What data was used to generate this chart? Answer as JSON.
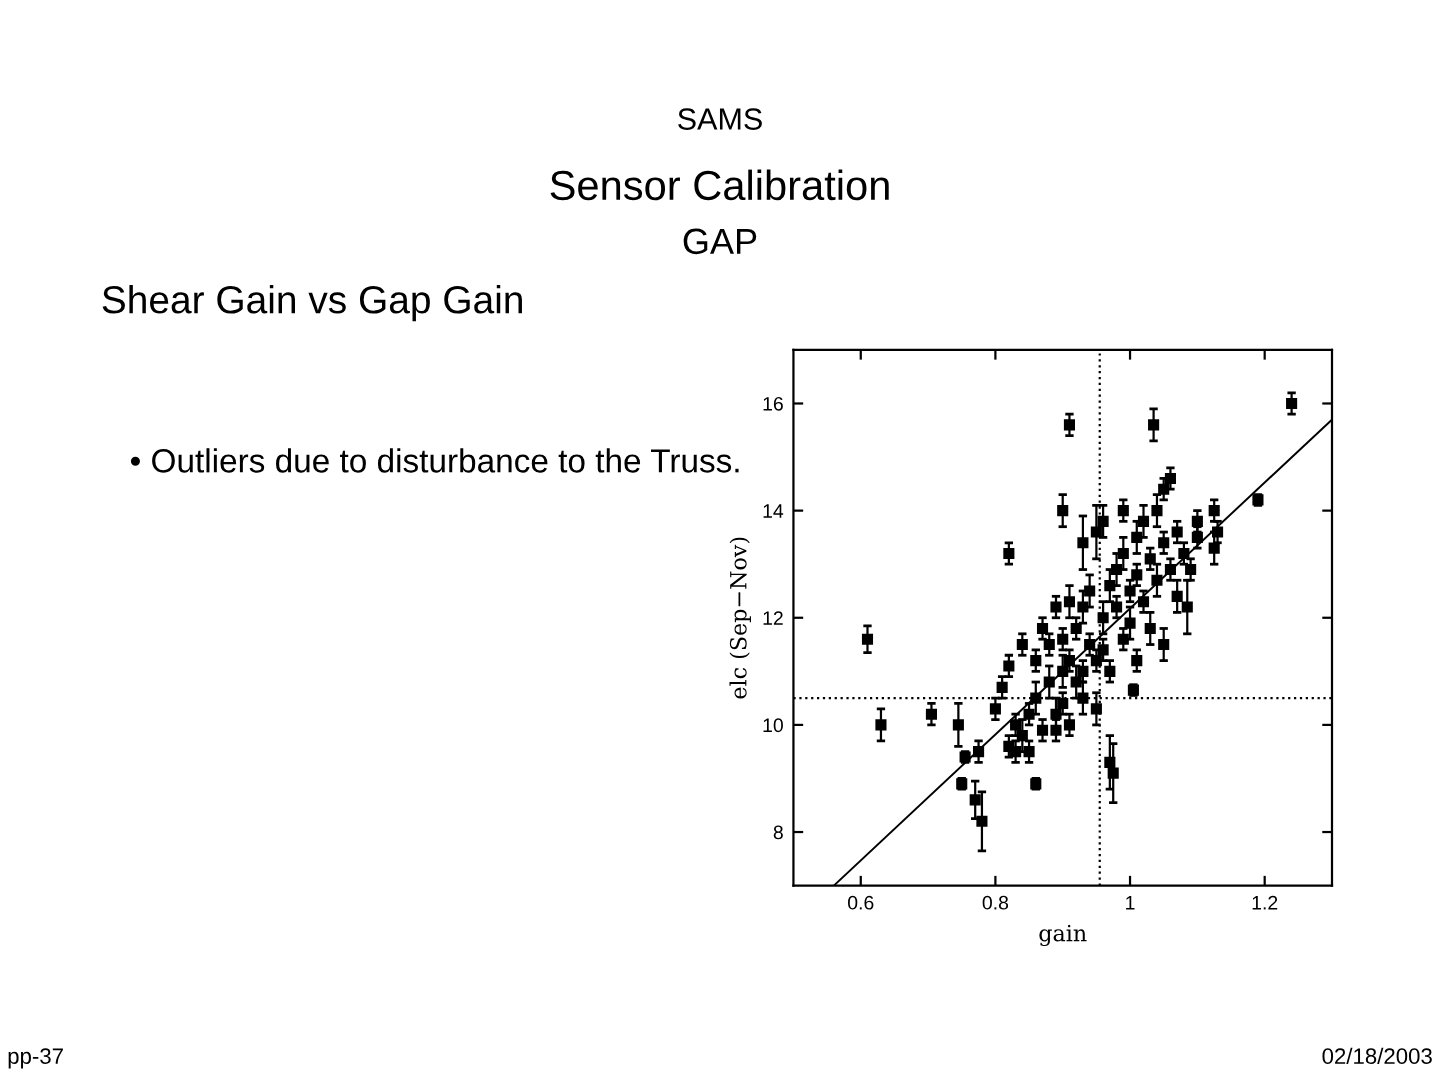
{
  "chart_data": {
    "type": "scatter",
    "title": "Sensor Calibration",
    "subtitle": "GAP",
    "xlabel": "gain",
    "ylabel": "elc (Sep−Nov)",
    "annotations": [
      "SAMS",
      "Shear Gain vs Gap Gain",
      "• Outliers due to disturbance to the Truss.",
      "pp-37",
      "02/18/2003"
    ],
    "xlim": [
      0.5,
      1.3
    ],
    "ylim": [
      7,
      17
    ],
    "xticks": [
      0.6,
      0.8,
      1,
      1.2
    ],
    "yticks": [
      8,
      10,
      12,
      14,
      16
    ],
    "grid": false,
    "legend": false,
    "ref_lines": [
      {
        "axis": "x",
        "value": 0.955,
        "line_style": "dotted",
        "color": "#000000"
      },
      {
        "axis": "y",
        "value": 10.5,
        "line_style": "dotted",
        "color": "#000000"
      }
    ],
    "series": [
      {
        "marker": "square",
        "color": "#000000",
        "x": [
          0.61,
          0.63,
          0.705,
          0.745,
          0.755,
          0.75,
          0.77,
          0.78,
          0.775,
          0.82,
          0.86,
          0.91,
          0.9,
          1.035,
          1.24,
          1.19,
          0.97,
          0.975,
          1.005,
          1.13,
          1.125,
          1.125,
          1.085,
          1.06,
          1.05,
          0.99,
          0.95,
          0.93,
          0.96,
          0.8,
          0.81,
          0.82,
          0.82,
          0.83,
          0.83,
          0.84,
          0.84,
          0.85,
          0.85,
          0.86,
          0.86,
          0.87,
          0.87,
          0.88,
          0.88,
          0.89,
          0.89,
          0.89,
          0.9,
          0.9,
          0.9,
          0.91,
          0.91,
          0.91,
          0.92,
          0.92,
          0.93,
          0.93,
          0.93,
          0.94,
          0.94,
          0.95,
          0.95,
          0.96,
          0.96,
          0.97,
          0.97,
          0.98,
          0.98,
          0.99,
          0.99,
          1.0,
          1.0,
          1.01,
          1.01,
          1.01,
          1.02,
          1.02,
          1.03,
          1.03,
          1.04,
          1.04,
          1.05,
          1.05,
          1.06,
          1.07,
          1.07,
          1.08,
          1.09,
          1.1,
          1.1
        ],
        "values": [
          11.6,
          10.0,
          10.2,
          10.0,
          9.4,
          8.9,
          8.6,
          8.2,
          9.5,
          13.2,
          8.9,
          15.6,
          14.0,
          15.6,
          16.0,
          14.2,
          9.3,
          9.1,
          10.65,
          13.6,
          13.3,
          14.0,
          12.2,
          14.6,
          14.4,
          14.0,
          13.6,
          13.4,
          13.8,
          10.3,
          10.7,
          11.1,
          9.6,
          9.5,
          10.0,
          11.5,
          9.8,
          10.2,
          9.5,
          11.2,
          10.5,
          11.8,
          9.9,
          10.8,
          11.5,
          12.2,
          10.2,
          9.9,
          11.0,
          11.6,
          10.4,
          12.3,
          11.2,
          10.0,
          10.8,
          11.8,
          12.2,
          11.0,
          10.5,
          11.5,
          12.5,
          11.2,
          10.3,
          12.0,
          11.4,
          12.6,
          11.0,
          12.9,
          12.2,
          11.6,
          13.2,
          12.5,
          11.9,
          13.5,
          12.8,
          11.2,
          13.8,
          12.3,
          13.1,
          11.8,
          12.7,
          14.0,
          13.4,
          11.5,
          12.9,
          13.6,
          12.4,
          13.2,
          12.9,
          13.5,
          13.8
        ],
        "errors": [
          0.25,
          0.3,
          0.2,
          0.4,
          0.1,
          0.1,
          0.35,
          0.55,
          0.2,
          0.2,
          0.1,
          0.2,
          0.3,
          0.3,
          0.2,
          0.1,
          0.5,
          0.55,
          0.1,
          0.2,
          0.3,
          0.2,
          0.5,
          0.2,
          0.2,
          0.2,
          0.5,
          0.5,
          0.3,
          0.2,
          0.2,
          0.2,
          0.2,
          0.2,
          0.2,
          0.2,
          0.3,
          0.2,
          0.2,
          0.2,
          0.3,
          0.2,
          0.2,
          0.3,
          0.2,
          0.2,
          0.3,
          0.2,
          0.3,
          0.2,
          0.2,
          0.3,
          0.2,
          0.2,
          0.3,
          0.2,
          0.3,
          0.2,
          0.3,
          0.2,
          0.3,
          0.2,
          0.3,
          0.3,
          0.2,
          0.3,
          0.2,
          0.3,
          0.2,
          0.2,
          0.3,
          0.2,
          0.3,
          0.3,
          0.2,
          0.2,
          0.3,
          0.2,
          0.2,
          0.3,
          0.3,
          0.3,
          0.2,
          0.3,
          0.2,
          0.2,
          0.3,
          0.2,
          0.2,
          0.2,
          0.2
        ]
      },
      {
        "type": "line",
        "color": "#000000",
        "x": [
          0.56,
          1.3
        ],
        "values": [
          7.0,
          15.7
        ]
      }
    ]
  }
}
